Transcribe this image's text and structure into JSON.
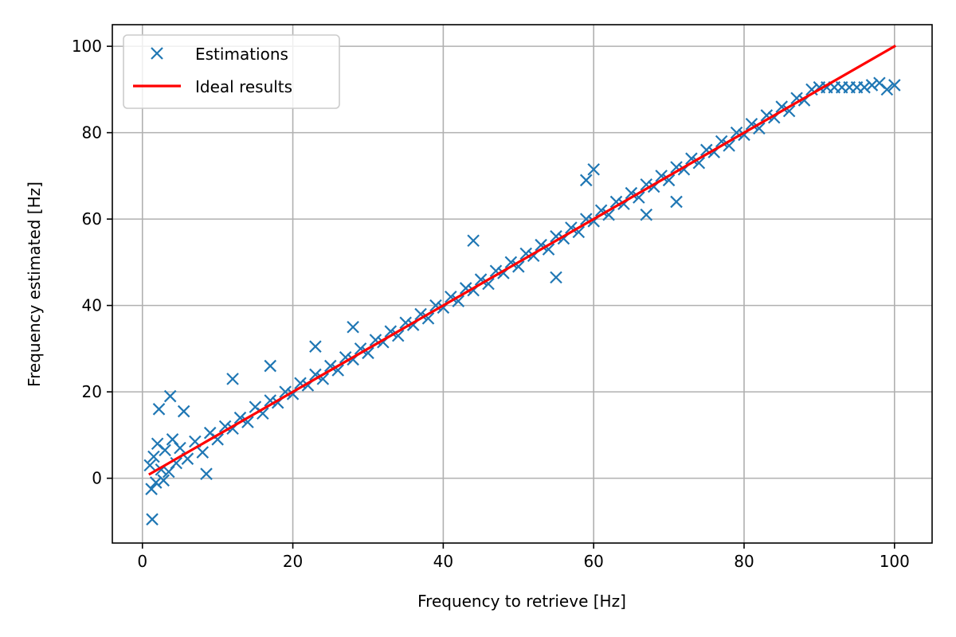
{
  "chart_data": {
    "type": "scatter",
    "title": "",
    "xlabel": "Frequency to retrieve [Hz]",
    "ylabel": "Frequency estimated [Hz]",
    "xlim": [
      -4,
      105
    ],
    "ylim": [
      -15,
      105
    ],
    "xticks": [
      0,
      20,
      40,
      60,
      80,
      100
    ],
    "yticks": [
      0,
      20,
      40,
      60,
      80,
      100
    ],
    "grid": true,
    "legend_position": "top-left",
    "series": [
      {
        "name": "Estimations",
        "kind": "scatter",
        "marker": "x",
        "color": "#1f77b4",
        "x": [
          1.0,
          1.2,
          1.5,
          1.8,
          2.0,
          2.5,
          3.0,
          3.5,
          4.0,
          4.5,
          5.0,
          6.0,
          7.0,
          8.0,
          9.0,
          10.0,
          11.0,
          12.0,
          13.0,
          14.0,
          15.0,
          16.0,
          17.0,
          18.0,
          19.0,
          20.0,
          21.0,
          22.0,
          23.0,
          24.0,
          25.0,
          26.0,
          27.0,
          28.0,
          29.0,
          30.0,
          31.0,
          32.0,
          33.0,
          34.0,
          35.0,
          36.0,
          37.0,
          38.0,
          39.0,
          40.0,
          41.0,
          42.0,
          43.0,
          44.0,
          45.0,
          46.0,
          47.0,
          48.0,
          49.0,
          50.0,
          51.0,
          52.0,
          53.0,
          54.0,
          55.0,
          56.0,
          57.0,
          58.0,
          59.0,
          60.0,
          61.0,
          62.0,
          63.0,
          64.0,
          65.0,
          66.0,
          67.0,
          68.0,
          69.0,
          70.0,
          71.0,
          72.0,
          73.0,
          74.0,
          75.0,
          76.0,
          77.0,
          78.0,
          79.0,
          80.0,
          81.0,
          82.0,
          83.0,
          84.0,
          85.0,
          86.0,
          87.0,
          88.0,
          89.0,
          90.0,
          91.0,
          92.0,
          93.0,
          94.0,
          95.0,
          96.0,
          97.0,
          98.0,
          99.0,
          100.0,
          1.3,
          3.7,
          2.2,
          5.5,
          12.0,
          17.0,
          23.0,
          28.0,
          44.0,
          59.0,
          60.0,
          67.0,
          55.0,
          71.0,
          8.5,
          2.8
        ],
        "y": [
          3.0,
          -2.5,
          5.0,
          -1.0,
          8.0,
          2.0,
          6.5,
          1.5,
          9.0,
          3.5,
          7.0,
          4.5,
          8.5,
          6.0,
          10.5,
          9.0,
          12.0,
          11.5,
          14.0,
          13.0,
          16.5,
          15.0,
          18.0,
          17.5,
          20.0,
          19.5,
          22.0,
          21.5,
          24.0,
          23.0,
          26.0,
          25.0,
          28.0,
          27.5,
          30.0,
          29.0,
          32.0,
          31.5,
          34.0,
          33.0,
          36.0,
          35.5,
          38.0,
          37.0,
          40.0,
          39.5,
          42.0,
          41.0,
          44.0,
          43.5,
          46.0,
          45.0,
          48.0,
          47.5,
          50.0,
          49.0,
          52.0,
          51.5,
          54.0,
          53.0,
          56.0,
          55.5,
          58.0,
          57.0,
          60.0,
          59.5,
          62.0,
          61.0,
          64.0,
          63.5,
          66.0,
          65.0,
          68.0,
          67.5,
          70.0,
          69.0,
          72.0,
          71.5,
          74.0,
          73.0,
          76.0,
          75.5,
          78.0,
          77.0,
          80.0,
          79.5,
          82.0,
          81.0,
          84.0,
          83.5,
          86.0,
          85.0,
          88.0,
          87.5,
          90.0,
          90.5,
          90.5,
          90.5,
          90.5,
          90.5,
          90.5,
          90.5,
          91.0,
          91.5,
          90.0,
          91.0,
          -9.5,
          19.0,
          16.0,
          15.5,
          23.0,
          26.0,
          30.5,
          35.0,
          55.0,
          69.0,
          71.5,
          61.0,
          46.5,
          64.0,
          1.0,
          -0.5
        ]
      },
      {
        "name": "Ideal results",
        "kind": "line",
        "color": "#ff0000",
        "x": [
          1,
          100
        ],
        "y": [
          1,
          100
        ]
      }
    ]
  }
}
